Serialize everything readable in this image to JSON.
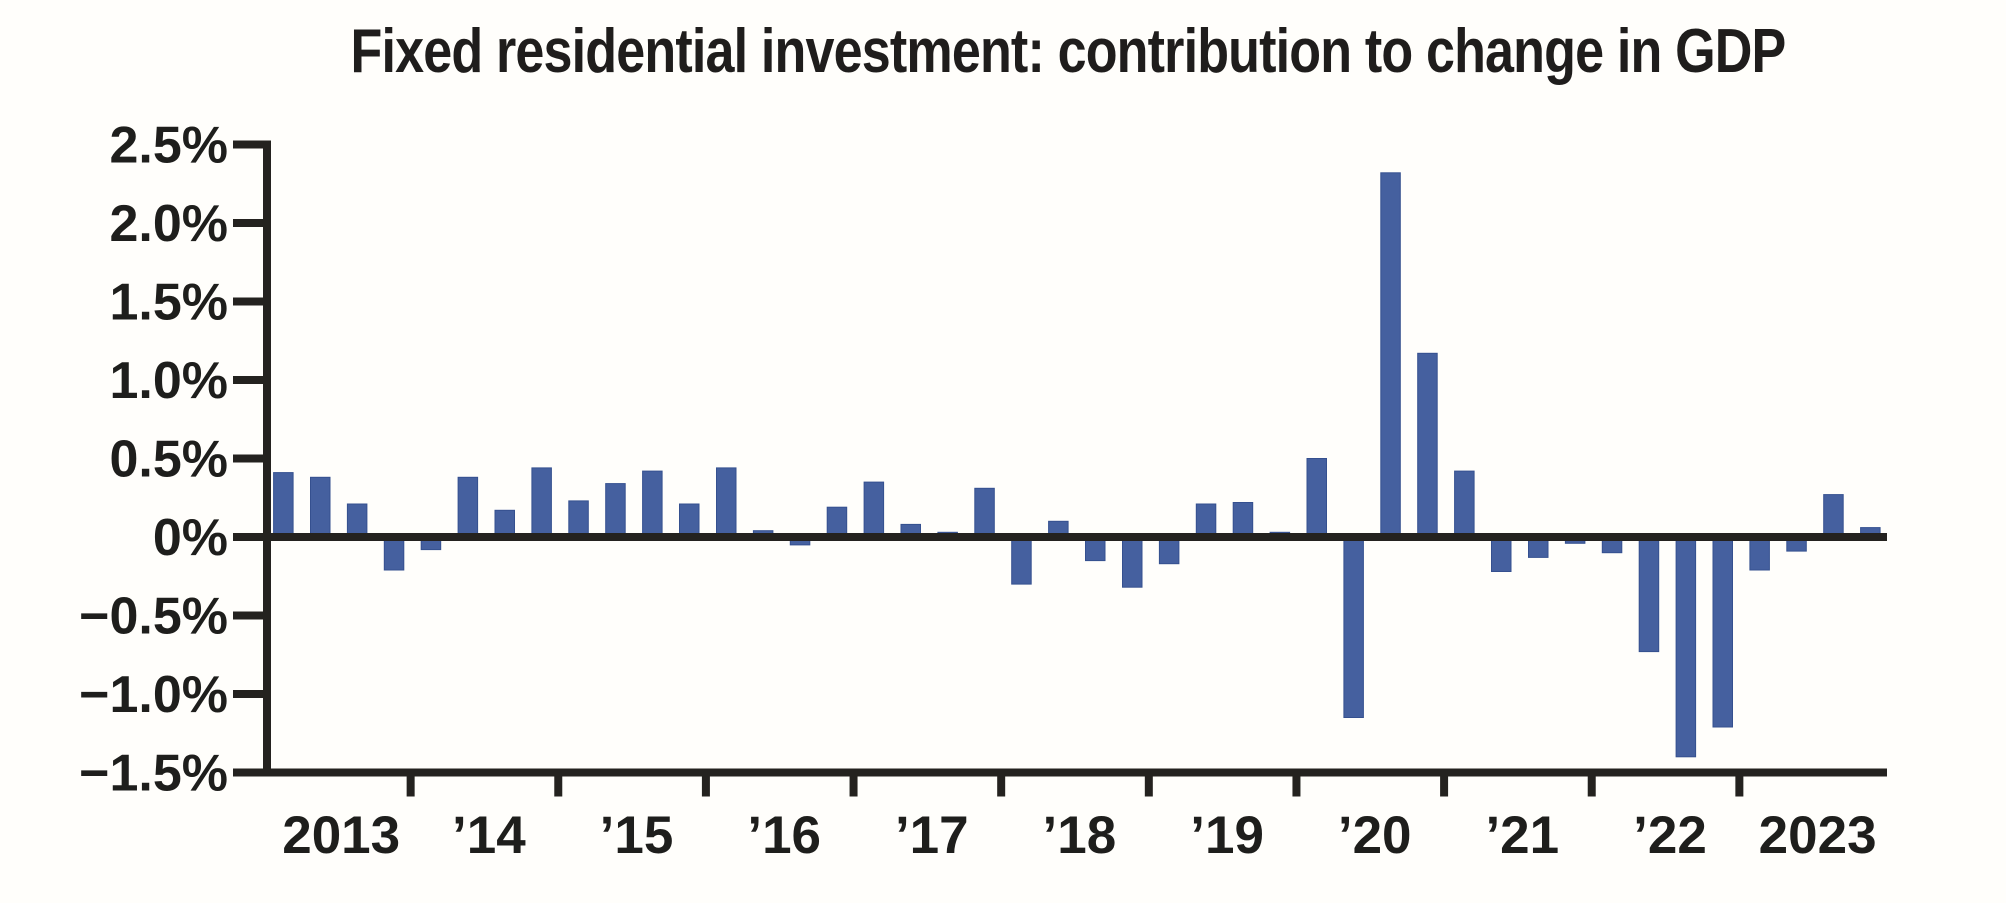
{
  "title": "Fixed residential investment: contribution to change in GDP",
  "chart_data": {
    "type": "bar",
    "title": "Fixed residential investment: contribution to change in GDP",
    "unit": "percent contribution to change in GDP",
    "frequency": "quarterly",
    "categories": [
      "2013 Q1",
      "2013 Q2",
      "2013 Q3",
      "2013 Q4",
      "2014 Q1",
      "2014 Q2",
      "2014 Q3",
      "2014 Q4",
      "2015 Q1",
      "2015 Q2",
      "2015 Q3",
      "2015 Q4",
      "2016 Q1",
      "2016 Q2",
      "2016 Q3",
      "2016 Q4",
      "2017 Q1",
      "2017 Q2",
      "2017 Q3",
      "2017 Q4",
      "2018 Q1",
      "2018 Q2",
      "2018 Q3",
      "2018 Q4",
      "2019 Q1",
      "2019 Q2",
      "2019 Q3",
      "2019 Q4",
      "2020 Q1",
      "2020 Q2",
      "2020 Q3",
      "2020 Q4",
      "2021 Q1",
      "2021 Q2",
      "2021 Q3",
      "2021 Q4",
      "2022 Q1",
      "2022 Q2",
      "2022 Q3",
      "2022 Q4",
      "2023 Q1",
      "2023 Q2",
      "2023 Q3",
      "2023 Q4"
    ],
    "values": [
      0.41,
      0.38,
      0.21,
      -0.21,
      -0.08,
      0.38,
      0.17,
      0.44,
      0.23,
      0.34,
      0.42,
      0.21,
      0.44,
      0.04,
      -0.05,
      0.19,
      0.35,
      0.08,
      0.03,
      0.31,
      -0.3,
      0.1,
      -0.15,
      -0.32,
      -0.17,
      0.21,
      0.22,
      0.03,
      0.5,
      -1.15,
      2.32,
      1.17,
      0.42,
      -0.22,
      -0.13,
      -0.04,
      -0.1,
      -0.73,
      -1.4,
      -1.21,
      -0.21,
      -0.09,
      0.27,
      0.06
    ],
    "x_year_labels": [
      "2013",
      "’14",
      "’15",
      "’16",
      "’17",
      "’18",
      "’19",
      "’20",
      "’21",
      "’22",
      "2023"
    ],
    "y_tick_labels": [
      "2.5%",
      "2.0%",
      "1.5%",
      "1.0%",
      "0.5%",
      "0%",
      "−0.5%",
      "−1.0%",
      "−1.5%"
    ],
    "y_tick_values": [
      2.5,
      2.0,
      1.5,
      1.0,
      0.5,
      0,
      -0.5,
      -1.0,
      -1.5
    ],
    "ylim": [
      -1.5,
      2.5
    ],
    "grid": false,
    "legend": "none",
    "bar_color": "#45609f",
    "bar_edge_color": "#35508f",
    "axis_color": "#24221f",
    "label_color": "#1e1e1c",
    "background_color": "#fffefb"
  }
}
